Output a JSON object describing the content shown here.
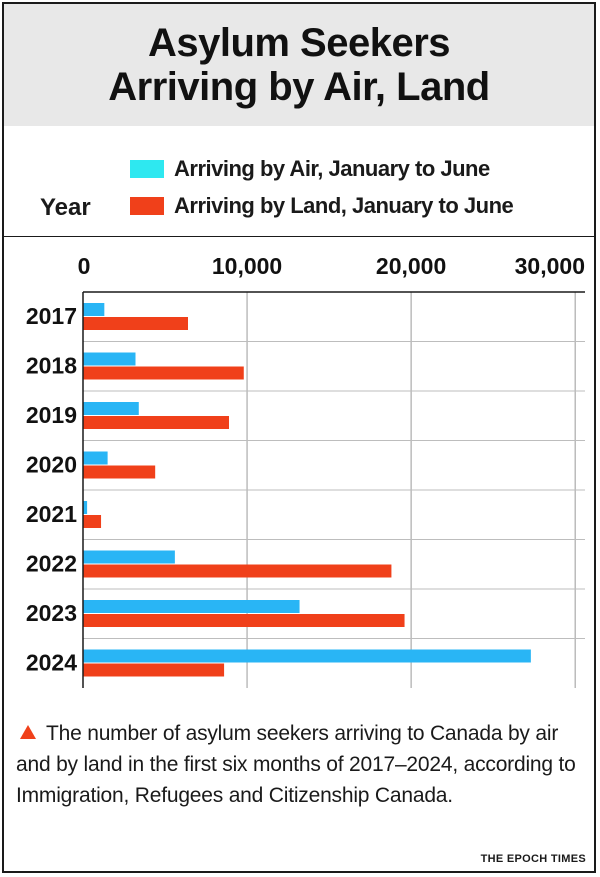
{
  "title_lines": [
    "Asylum Seekers",
    "Arriving by Air, Land"
  ],
  "legend": {
    "air": "Arriving by Air, January to June",
    "land": "Arriving by Land, January to June"
  },
  "colors": {
    "air": "#29b5f5",
    "land": "#f0401a",
    "legend_air": "#2ee8f0"
  },
  "year_axis_label": "Year",
  "footnote": "The number of asylum seekers arriving to Canada by air and by land in the first six months of 2017–2024, according to Immigration, Refugees and Citizenship Canada.",
  "credit": "THE EPOCH TIMES",
  "chart_data": {
    "type": "bar",
    "orientation": "horizontal",
    "categories": [
      "2017",
      "2018",
      "2019",
      "2020",
      "2021",
      "2022",
      "2023",
      "2024"
    ],
    "series": [
      {
        "name": "Arriving by Air, January to June",
        "values": [
          1300,
          3200,
          3400,
          1500,
          250,
          5600,
          13200,
          27300
        ]
      },
      {
        "name": "Arriving by Land, January to June",
        "values": [
          6400,
          9800,
          8900,
          4400,
          1100,
          18800,
          19600,
          8600
        ]
      }
    ],
    "xticks": [
      "0",
      "10,000",
      "20,000",
      "30,000"
    ],
    "xtick_values": [
      0,
      10000,
      20000,
      30000
    ],
    "xlim": [
      0,
      30000
    ],
    "ylabel": "Year",
    "grid": true,
    "legend_position": "top"
  }
}
